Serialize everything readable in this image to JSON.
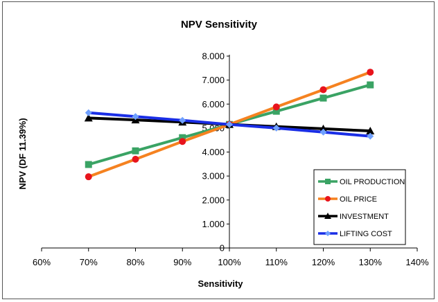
{
  "chart_data": {
    "type": "line",
    "title": "NPV Sensitivity",
    "xlabel": "Sensitivity",
    "ylabel": "NPV (DF 11.39%)",
    "xlim": [
      60,
      140
    ],
    "ylim": [
      0,
      8000
    ],
    "x_ticks": [
      "60%",
      "70%",
      "80%",
      "90%",
      "100%",
      "110%",
      "120%",
      "130%",
      "140%"
    ],
    "y_ticks": [
      "0",
      "1.000",
      "2.000",
      "3.000",
      "4.000",
      "5.000",
      "6.000",
      "7.000",
      "8.000"
    ],
    "x": [
      70,
      80,
      90,
      100,
      110,
      120,
      130
    ],
    "legend_position": "bottom-right",
    "grid": false,
    "series": [
      {
        "name": "OIL PRODUCTION",
        "color": "#3aa364",
        "marker": "square",
        "values": [
          3480,
          4050,
          4600,
          5150,
          5700,
          6250,
          6800
        ]
      },
      {
        "name": "OIL PRICE",
        "color": "#f58220",
        "marker": "circle",
        "marker_color": "#e8141c",
        "values": [
          2970,
          3700,
          4440,
          5150,
          5880,
          6600,
          7330
        ]
      },
      {
        "name": "INVESTMENT",
        "color": "#000000",
        "marker": "triangle",
        "values": [
          5420,
          5340,
          5250,
          5150,
          5060,
          4970,
          4880
        ]
      },
      {
        "name": "LIFTING COST",
        "color": "#1a2ee6",
        "marker": "diamond",
        "marker_color": "#6fa0ff",
        "values": [
          5640,
          5480,
          5320,
          5150,
          5000,
          4830,
          4660
        ]
      }
    ]
  }
}
